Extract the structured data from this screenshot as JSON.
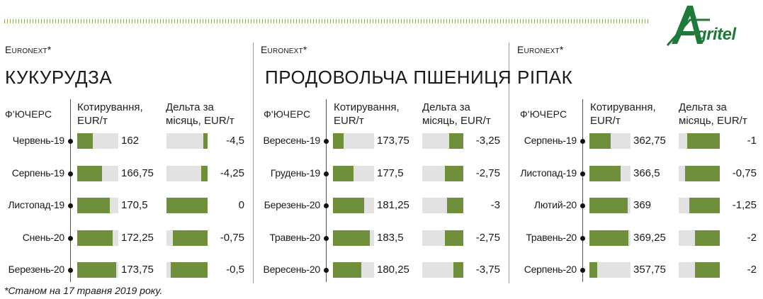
{
  "chart_data": [
    {
      "type": "bar",
      "source": "Euronext*",
      "title": "КУКУРУДЗА",
      "headers": {
        "futures": "Ф'ЮЧЕРС",
        "quote_line1": "Котирування,",
        "quote_line2": "EUR/т",
        "delta_line1": "Дельта за",
        "delta_line2": "місяць, EUR/т"
      },
      "categories": [
        "Червень-19",
        "Серпень-19",
        "Листопад-19",
        "Снень-20",
        "Березень-20"
      ],
      "quote_labels": [
        "162",
        "166,75",
        "170,5",
        "172,25",
        "173,75"
      ],
      "quotes": [
        162,
        166.75,
        170.5,
        172.25,
        173.75
      ],
      "quote_range": [
        154,
        175
      ],
      "delta_labels": [
        "-4,5",
        "-4,25",
        "0",
        "-0,75",
        "-0,5"
      ],
      "deltas": [
        -4.5,
        -4.25,
        0,
        -0.75,
        -0.5
      ]
    },
    {
      "type": "bar",
      "source": "Euronext*",
      "title": "ПРОДОВОЛЬЧА ПШЕНИЦЯ",
      "headers": {
        "futures": "Ф'ЮЧЕРС",
        "quote_line1": "Котирування,",
        "quote_line2": "EUR/т",
        "delta_line1": "Дельта за",
        "delta_line2": "місяць, EUR/т"
      },
      "categories": [
        "Вересень-19",
        "Грудень-19",
        "Березень-20",
        "Травень-20",
        "Вересень-20"
      ],
      "quote_labels": [
        "173,75",
        "177,5",
        "181,25",
        "183,5",
        "180,25"
      ],
      "quotes": [
        173.75,
        177.5,
        181.25,
        183.5,
        180.25
      ],
      "quote_range": [
        170,
        185
      ],
      "delta_labels": [
        "-3,25",
        "-2,75",
        "-3",
        "-2,75",
        "-3,75"
      ],
      "deltas": [
        -3.25,
        -2.75,
        -3,
        -2.75,
        -3.75
      ]
    },
    {
      "type": "bar",
      "source": "Euronext*",
      "title": "РІПАК",
      "headers": {
        "futures": "Ф'ЮЧЕРС",
        "quote_line1": "Котирування,",
        "quote_line2": "EUR/т",
        "delta_line1": "Дельта за",
        "delta_line2": "місяць, EUR/т"
      },
      "categories": [
        "Серпень-19",
        "Листопад-19",
        "Лютий-20",
        "Травень-20",
        "Серпень-20"
      ],
      "quote_labels": [
        "362,75",
        "366,5",
        "369",
        "369,25",
        "357,75"
      ],
      "quotes": [
        362.75,
        366.5,
        369,
        369.25,
        357.75
      ],
      "quote_range": [
        355,
        370
      ],
      "delta_labels": [
        "-1",
        "-0,75",
        "-1,25",
        "-2",
        "-2"
      ],
      "deltas": [
        -1,
        -0.75,
        -1.25,
        -2,
        -2
      ]
    }
  ],
  "brand": {
    "logo_text": "gritel"
  },
  "footnote": "*Станом на 17 травня 2019 року.",
  "colors": {
    "bar": "#6f8f3a",
    "track": "#e2e2e2",
    "logo": "#1f7a3a"
  }
}
